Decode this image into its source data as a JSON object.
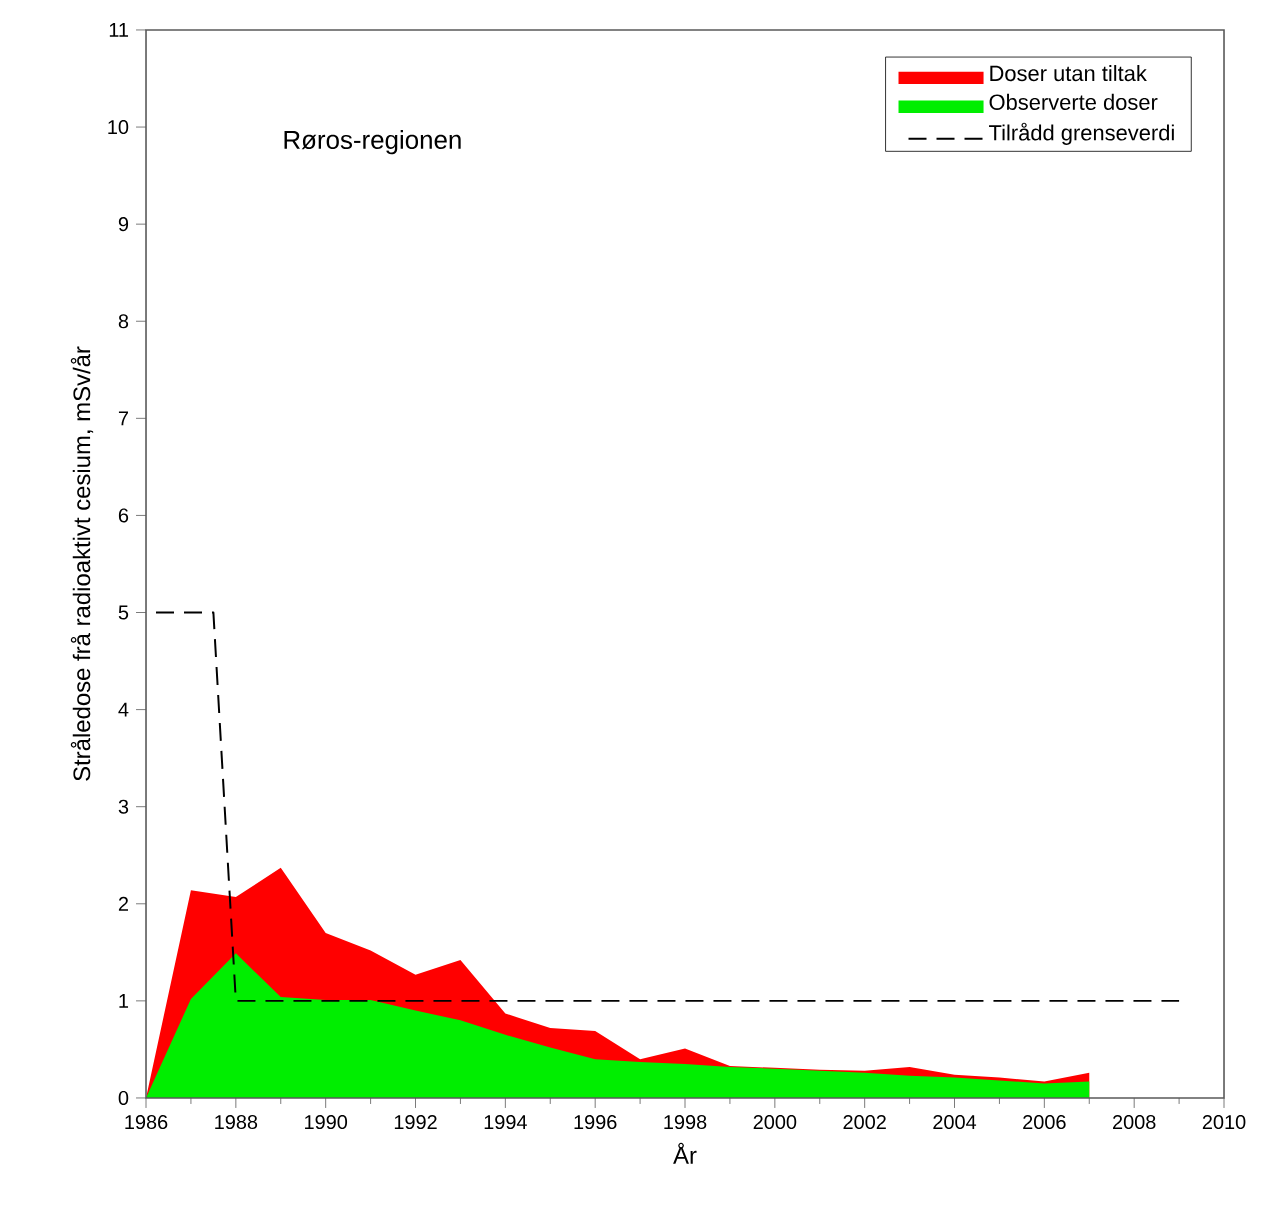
{
  "chart_data": {
    "type": "area",
    "xlabel": "År",
    "ylabel": "Stråledose frå radioaktivt cesium, mSv/år",
    "annotations": [
      "Røros-regionen"
    ],
    "x": [
      1986,
      1987,
      1988,
      1989,
      1990,
      1991,
      1992,
      1993,
      1994,
      1995,
      1996,
      1997,
      1998,
      1999,
      2000,
      2001,
      2002,
      2003,
      2004,
      2005,
      2006,
      2007
    ],
    "series": [
      {
        "name": "Doser utan tiltak",
        "color": "#ff0000",
        "values": [
          0,
          2.14,
          2.07,
          2.37,
          1.7,
          1.52,
          1.27,
          1.42,
          0.87,
          0.72,
          0.69,
          0.4,
          0.51,
          0.33,
          0.31,
          0.29,
          0.28,
          0.32,
          0.24,
          0.21,
          0.17,
          0.26
        ]
      },
      {
        "name": "Observerte doser",
        "color": "#00ee00",
        "values": [
          0,
          1.02,
          1.49,
          1.04,
          1.01,
          1.01,
          0.9,
          0.8,
          0.65,
          0.52,
          0.4,
          0.37,
          0.35,
          0.32,
          0.3,
          0.28,
          0.26,
          0.23,
          0.21,
          0.18,
          0.15,
          0.17
        ]
      },
      {
        "name": "Tilrådd grenseverdi",
        "type": "line",
        "color": "#000000",
        "line_style": "dashed",
        "x": [
          1986,
          1987.5,
          1988,
          2009
        ],
        "values": [
          5,
          5,
          1,
          1
        ]
      }
    ],
    "xlim": [
      1986,
      2010
    ],
    "xticks": [
      1986,
      1988,
      1990,
      1992,
      1994,
      1996,
      1998,
      2000,
      2002,
      2004,
      2006,
      2008,
      2010
    ],
    "ylim": [
      0,
      11
    ],
    "yticks": [
      0,
      1,
      2,
      3,
      4,
      5,
      6,
      7,
      8,
      9,
      10,
      11
    ],
    "legend": "top right",
    "marker": "none"
  }
}
